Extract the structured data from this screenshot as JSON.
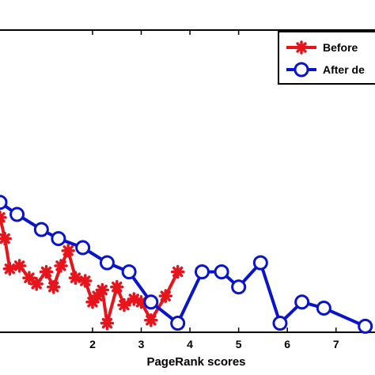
{
  "chart_data": {
    "type": "line",
    "xlabel": "PageRank scores",
    "ylabel": "",
    "title": "",
    "xlim": [
      0.1,
      7.8
    ],
    "ylim": [
      0,
      10
    ],
    "xticks": [
      2,
      3,
      4,
      5,
      6,
      7
    ],
    "grid": false,
    "legend_position": "top-right",
    "series": [
      {
        "name": "Before",
        "color": "#e8141c",
        "marker": "asterisk",
        "points": [
          [
            0.1,
            3.8
          ],
          [
            0.2,
            3.1
          ],
          [
            0.3,
            2.1
          ],
          [
            0.5,
            2.2
          ],
          [
            0.7,
            1.8
          ],
          [
            0.85,
            1.6
          ],
          [
            1.05,
            2.0
          ],
          [
            1.2,
            1.5
          ],
          [
            1.35,
            2.2
          ],
          [
            1.5,
            2.7
          ],
          [
            1.65,
            1.8
          ],
          [
            1.85,
            1.7
          ],
          [
            2.0,
            1.0
          ],
          [
            2.1,
            1.2
          ],
          [
            2.2,
            1.4
          ],
          [
            2.3,
            0.3
          ],
          [
            2.5,
            1.5
          ],
          [
            2.65,
            0.9
          ],
          [
            2.85,
            1.1
          ],
          [
            3.0,
            1.0
          ],
          [
            3.2,
            0.4
          ],
          [
            3.5,
            1.2
          ],
          [
            3.75,
            2.0
          ]
        ]
      },
      {
        "name": "After de",
        "color": "#0a14c8",
        "marker": "circle",
        "points": [
          [
            0.1,
            4.3
          ],
          [
            0.45,
            3.9
          ],
          [
            0.95,
            3.4
          ],
          [
            1.3,
            3.1
          ],
          [
            1.8,
            2.8
          ],
          [
            2.3,
            2.3
          ],
          [
            2.75,
            2.0
          ],
          [
            3.2,
            1.0
          ],
          [
            3.75,
            0.3
          ],
          [
            4.25,
            2.0
          ],
          [
            4.65,
            2.0
          ],
          [
            5.0,
            1.5
          ],
          [
            5.45,
            2.3
          ],
          [
            5.85,
            0.3
          ],
          [
            6.3,
            1.0
          ],
          [
            6.75,
            0.8
          ],
          [
            7.6,
            0.2
          ]
        ]
      }
    ]
  }
}
